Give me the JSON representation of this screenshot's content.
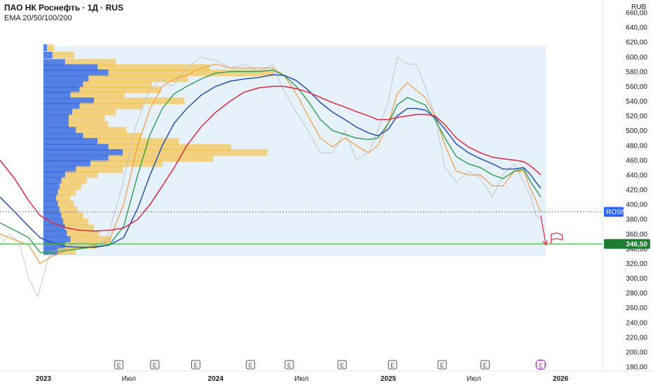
{
  "header": {
    "title": "ПАО НК Роснефть · 1Д · RUS",
    "indicator": "EMA 20/50/100/200",
    "currency": "RUB"
  },
  "colors": {
    "ema20": "#f59a3c",
    "ema50": "#2e9e4f",
    "ema100": "#2452b8",
    "ema200": "#e0283c",
    "price": "#b8c2cc",
    "vp_up": "#f5c44e",
    "vp_down": "#3d6fe0",
    "vp_area": "#e6f1fb",
    "support": "#4caf50",
    "marker": "#e0283c",
    "current_label": "#2962ff",
    "support_label": "#1f7a33",
    "earnings": "#555555",
    "earnings_next": "#b037c8"
  },
  "chart_data": {
    "type": "line",
    "title": "ПАО НК Роснефть · 1Д · RUS",
    "x_range": [
      "2022-10-01",
      "2026-03-31"
    ],
    "ylim": [
      180,
      660
    ],
    "y_ticks": [
      "180,00",
      "200,00",
      "220,00",
      "240,00",
      "260,00",
      "280,00",
      "300,00",
      "320,00",
      "340,00",
      "360,00",
      "380,00",
      "400,00",
      "420,00",
      "440,00",
      "460,00",
      "480,00",
      "500,00",
      "520,00",
      "540,00",
      "560,00",
      "580,00",
      "600,00",
      "620,00",
      "640,00",
      "660,00"
    ],
    "x_ticks": [
      {
        "label": "2023",
        "date": "2023-01-01",
        "bold": true
      },
      {
        "label": "Июл",
        "date": "2023-07-01",
        "bold": false
      },
      {
        "label": "2024",
        "date": "2024-01-01",
        "bold": true
      },
      {
        "label": "Июл",
        "date": "2024-07-01",
        "bold": false
      },
      {
        "label": "2025",
        "date": "2025-01-01",
        "bold": true
      },
      {
        "label": "Июл",
        "date": "2025-07-01",
        "bold": false
      },
      {
        "label": "2026",
        "date": "2026-01-01",
        "bold": true
      }
    ],
    "series": [
      {
        "key": "price",
        "x": [
          "2022-10-01",
          "2022-10-20",
          "2022-11-10",
          "2022-12-01",
          "2022-12-20",
          "2023-01-15",
          "2023-02-15",
          "2023-03-15",
          "2023-04-15",
          "2023-05-15",
          "2023-06-15",
          "2023-07-15",
          "2023-08-10",
          "2023-09-05",
          "2023-10-01",
          "2023-11-01",
          "2023-12-01",
          "2024-01-01",
          "2024-02-01",
          "2024-03-01",
          "2024-04-01",
          "2024-05-01",
          "2024-05-20",
          "2024-06-15",
          "2024-07-15",
          "2024-08-10",
          "2024-09-05",
          "2024-10-01",
          "2024-10-25",
          "2024-11-20",
          "2024-12-10",
          "2025-01-01",
          "2025-01-20",
          "2025-02-10",
          "2025-03-01",
          "2025-03-20",
          "2025-04-10",
          "2025-05-01",
          "2025-05-25",
          "2025-06-20",
          "2025-07-15",
          "2025-08-10",
          "2025-09-01",
          "2025-09-25",
          "2025-10-15",
          "2025-10-30",
          "2025-11-10",
          "2025-11-20"
        ],
        "values": [
          345,
          360,
          350,
          300,
          275,
          335,
          340,
          350,
          345,
          352,
          420,
          505,
          550,
          570,
          560,
          585,
          600,
          595,
          585,
          590,
          580,
          590,
          560,
          530,
          500,
          470,
          470,
          500,
          460,
          470,
          500,
          540,
          600,
          590,
          590,
          560,
          520,
          450,
          430,
          445,
          435,
          410,
          440,
          455,
          430,
          410,
          385,
          380
        ]
      },
      {
        "key": "ema20",
        "x": [
          "2022-10-01",
          "2022-11-01",
          "2022-12-01",
          "2022-12-25",
          "2023-01-20",
          "2023-02-20",
          "2023-03-20",
          "2023-04-20",
          "2023-05-20",
          "2023-06-20",
          "2023-07-20",
          "2023-08-15",
          "2023-09-10",
          "2023-10-05",
          "2023-11-01",
          "2023-12-01",
          "2024-01-01",
          "2024-02-01",
          "2024-03-01",
          "2024-04-01",
          "2024-05-01",
          "2024-05-25",
          "2024-06-20",
          "2024-07-15",
          "2024-08-10",
          "2024-09-05",
          "2024-10-01",
          "2024-10-25",
          "2024-11-20",
          "2024-12-10",
          "2025-01-01",
          "2025-01-20",
          "2025-02-10",
          "2025-03-01",
          "2025-03-20",
          "2025-04-10",
          "2025-05-01",
          "2025-05-25",
          "2025-06-20",
          "2025-07-15",
          "2025-08-10",
          "2025-09-01",
          "2025-09-25",
          "2025-10-15",
          "2025-10-30",
          "2025-11-10",
          "2025-11-20"
        ],
        "values": [
          360,
          352,
          345,
          320,
          330,
          338,
          340,
          345,
          350,
          400,
          480,
          530,
          560,
          570,
          575,
          585,
          590,
          585,
          585,
          585,
          585,
          575,
          550,
          520,
          490,
          478,
          490,
          480,
          470,
          480,
          510,
          550,
          565,
          555,
          545,
          520,
          480,
          445,
          440,
          440,
          425,
          425,
          445,
          445,
          420,
          405,
          390
        ]
      },
      {
        "key": "ema50",
        "x": [
          "2022-10-01",
          "2022-11-01",
          "2022-12-01",
          "2022-12-25",
          "2023-01-20",
          "2023-02-20",
          "2023-03-20",
          "2023-04-20",
          "2023-05-20",
          "2023-06-20",
          "2023-07-20",
          "2023-08-15",
          "2023-09-10",
          "2023-10-05",
          "2023-11-01",
          "2023-12-01",
          "2024-01-01",
          "2024-02-01",
          "2024-03-01",
          "2024-04-01",
          "2024-05-01",
          "2024-05-25",
          "2024-06-20",
          "2024-07-15",
          "2024-08-10",
          "2024-09-05",
          "2024-10-01",
          "2024-10-25",
          "2024-11-20",
          "2024-12-10",
          "2025-01-01",
          "2025-01-20",
          "2025-02-10",
          "2025-03-01",
          "2025-03-20",
          "2025-04-10",
          "2025-05-01",
          "2025-05-25",
          "2025-06-20",
          "2025-07-15",
          "2025-08-10",
          "2025-09-01",
          "2025-09-25",
          "2025-10-15",
          "2025-10-30",
          "2025-11-10",
          "2025-11-20"
        ],
        "values": [
          375,
          365,
          355,
          335,
          335,
          338,
          340,
          343,
          345,
          370,
          440,
          495,
          530,
          550,
          560,
          570,
          578,
          580,
          580,
          580,
          582,
          575,
          560,
          540,
          515,
          500,
          495,
          490,
          488,
          490,
          510,
          535,
          545,
          540,
          535,
          515,
          490,
          465,
          455,
          450,
          440,
          435,
          445,
          448,
          430,
          420,
          410
        ]
      },
      {
        "key": "ema100",
        "x": [
          "2022-10-01",
          "2022-11-01",
          "2022-12-01",
          "2022-12-25",
          "2023-01-20",
          "2023-02-20",
          "2023-03-20",
          "2023-04-20",
          "2023-05-20",
          "2023-06-20",
          "2023-07-20",
          "2023-08-15",
          "2023-09-10",
          "2023-10-05",
          "2023-11-01",
          "2023-12-01",
          "2024-01-01",
          "2024-02-01",
          "2024-03-01",
          "2024-04-01",
          "2024-05-01",
          "2024-05-25",
          "2024-06-20",
          "2024-07-15",
          "2024-08-10",
          "2024-09-05",
          "2024-10-01",
          "2024-10-25",
          "2024-11-20",
          "2024-12-10",
          "2025-01-01",
          "2025-01-20",
          "2025-02-10",
          "2025-03-01",
          "2025-03-20",
          "2025-04-10",
          "2025-05-01",
          "2025-05-25",
          "2025-06-20",
          "2025-07-15",
          "2025-08-10",
          "2025-09-01",
          "2025-09-25",
          "2025-10-15",
          "2025-10-30",
          "2025-11-10",
          "2025-11-20"
        ],
        "values": [
          410,
          390,
          370,
          355,
          348,
          343,
          342,
          342,
          345,
          355,
          395,
          440,
          480,
          510,
          530,
          548,
          560,
          567,
          570,
          572,
          576,
          575,
          568,
          555,
          538,
          525,
          515,
          505,
          497,
          493,
          502,
          520,
          530,
          530,
          528,
          518,
          502,
          482,
          470,
          462,
          455,
          448,
          448,
          450,
          440,
          430,
          422
        ]
      },
      {
        "key": "ema200",
        "x": [
          "2022-10-01",
          "2022-11-01",
          "2022-12-01",
          "2022-12-25",
          "2023-01-20",
          "2023-02-20",
          "2023-03-20",
          "2023-04-20",
          "2023-05-20",
          "2023-06-20",
          "2023-07-20",
          "2023-08-15",
          "2023-09-10",
          "2023-10-05",
          "2023-11-01",
          "2023-12-01",
          "2024-01-01",
          "2024-02-01",
          "2024-03-01",
          "2024-04-01",
          "2024-05-01",
          "2024-05-25",
          "2024-06-20",
          "2024-07-15",
          "2024-08-10",
          "2024-09-05",
          "2024-10-01",
          "2024-10-25",
          "2024-11-20",
          "2024-12-10",
          "2025-01-01",
          "2025-01-20",
          "2025-02-10",
          "2025-03-01",
          "2025-03-20",
          "2025-04-10",
          "2025-05-01",
          "2025-05-25",
          "2025-06-20",
          "2025-07-15",
          "2025-08-10",
          "2025-09-01",
          "2025-09-25",
          "2025-10-15",
          "2025-10-30",
          "2025-11-10",
          "2025-11-20"
        ],
        "values": [
          460,
          435,
          405,
          385,
          375,
          368,
          365,
          364,
          365,
          368,
          380,
          400,
          425,
          450,
          480,
          505,
          525,
          540,
          552,
          558,
          560,
          560,
          557,
          552,
          545,
          538,
          532,
          526,
          520,
          515,
          515,
          518,
          520,
          522,
          522,
          520,
          508,
          490,
          478,
          470,
          464,
          462,
          460,
          458,
          452,
          446,
          440
        ]
      }
    ],
    "volume_profile": {
      "date_range": [
        "2023-01-01",
        "2025-12-01"
      ],
      "price_range": [
        330,
        615
      ],
      "rows": [
        {
          "price": 612,
          "up": 4,
          "down": 2
        },
        {
          "price": 602,
          "up": 12,
          "down": 5
        },
        {
          "price": 592,
          "up": 28,
          "down": 12
        },
        {
          "price": 585,
          "up": 62,
          "down": 30
        },
        {
          "price": 578,
          "up": 92,
          "down": 36
        },
        {
          "price": 570,
          "up": 55,
          "down": 25
        },
        {
          "price": 562,
          "up": 38,
          "down": 22
        },
        {
          "price": 555,
          "up": 45,
          "down": 20
        },
        {
          "price": 548,
          "up": 30,
          "down": 15
        },
        {
          "price": 540,
          "up": 50,
          "down": 28
        },
        {
          "price": 533,
          "up": 35,
          "down": 20
        },
        {
          "price": 525,
          "up": 24,
          "down": 16
        },
        {
          "price": 517,
          "up": 20,
          "down": 14
        },
        {
          "price": 508,
          "up": 22,
          "down": 14
        },
        {
          "price": 500,
          "up": 28,
          "down": 18
        },
        {
          "price": 492,
          "up": 32,
          "down": 22
        },
        {
          "price": 485,
          "up": 45,
          "down": 30
        },
        {
          "price": 477,
          "up": 68,
          "down": 36
        },
        {
          "price": 470,
          "up": 80,
          "down": 44
        },
        {
          "price": 462,
          "up": 58,
          "down": 36
        },
        {
          "price": 455,
          "up": 40,
          "down": 26
        },
        {
          "price": 447,
          "up": 26,
          "down": 18
        },
        {
          "price": 440,
          "up": 18,
          "down": 12
        },
        {
          "price": 432,
          "up": 14,
          "down": 10
        },
        {
          "price": 424,
          "up": 12,
          "down": 9
        },
        {
          "price": 416,
          "up": 10,
          "down": 8
        },
        {
          "price": 408,
          "up": 8,
          "down": 7
        },
        {
          "price": 400,
          "up": 9,
          "down": 8
        },
        {
          "price": 392,
          "up": 10,
          "down": 9
        },
        {
          "price": 384,
          "up": 12,
          "down": 10
        },
        {
          "price": 376,
          "up": 14,
          "down": 11
        },
        {
          "price": 368,
          "up": 16,
          "down": 12
        },
        {
          "price": 360,
          "up": 18,
          "down": 13
        },
        {
          "price": 352,
          "up": 22,
          "down": 15
        },
        {
          "price": 344,
          "up": 18,
          "down": 12
        },
        {
          "price": 336,
          "up": 10,
          "down": 8
        }
      ]
    },
    "current_price": {
      "label": "ROSN",
      "value": 390
    },
    "support_level": {
      "value": 346.5,
      "label": "346,50"
    },
    "projection_arrow": {
      "from": {
        "date": "2025-11-20",
        "value": 385
      },
      "to": {
        "date": "2025-12-01",
        "value": 345
      }
    },
    "target_flag": {
      "date": "2025-12-12",
      "value": 352
    },
    "earnings": [
      {
        "date": "2023-06-10",
        "label": "E"
      },
      {
        "date": "2023-08-25",
        "label": "E"
      },
      {
        "date": "2023-11-20",
        "label": "E"
      },
      {
        "date": "2024-03-15",
        "label": "E"
      },
      {
        "date": "2024-06-05",
        "label": "E"
      },
      {
        "date": "2024-09-25",
        "label": "E"
      },
      {
        "date": "2025-01-10",
        "label": "E"
      },
      {
        "date": "2025-04-25",
        "label": "E"
      },
      {
        "date": "2025-07-25",
        "label": "E"
      },
      {
        "date": "2025-11-20",
        "label": "E",
        "upcoming": true
      }
    ],
    "grid": false
  }
}
